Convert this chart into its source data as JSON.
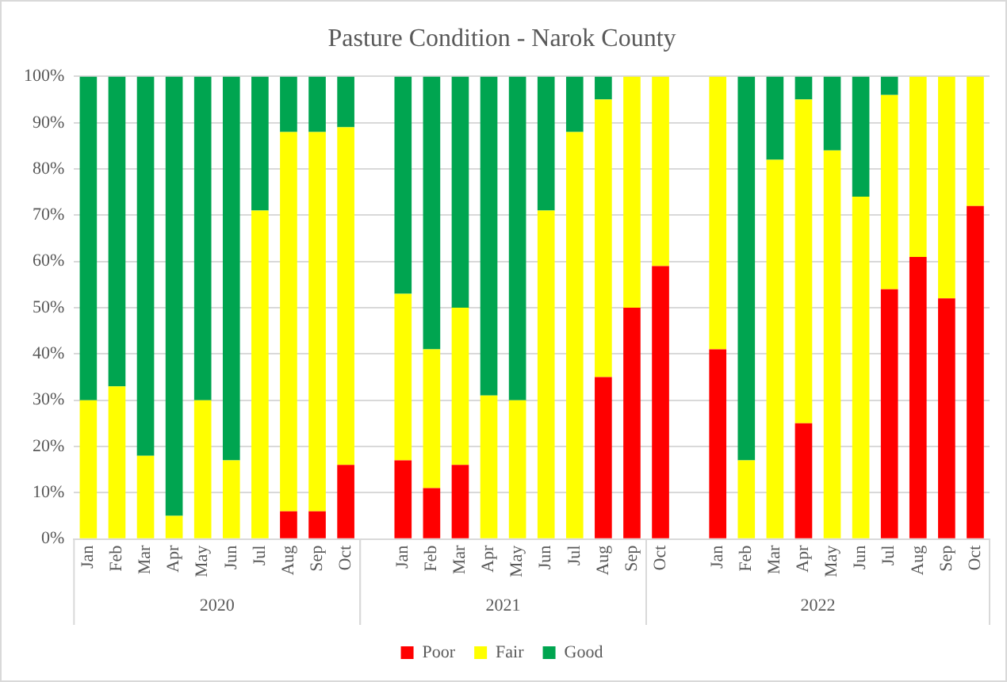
{
  "chart_data": {
    "type": "bar",
    "title": "Pasture Condition - Narok County",
    "stacked": true,
    "categories": [
      "Jan",
      "Feb",
      "Mar",
      "Apr",
      "May",
      "Jun",
      "Jul",
      "Aug",
      "Sep",
      "Oct",
      null,
      "Jan",
      "Feb",
      "Mar",
      "Apr",
      "May",
      "Jun",
      "Jul",
      "Aug",
      "Sep",
      "Oct",
      null,
      "Jan",
      "Feb",
      "Mar",
      "Apr",
      "May",
      "Jun",
      "Jul",
      "Aug",
      "Sep",
      "Oct"
    ],
    "series": [
      {
        "name": "Poor",
        "color": "#ff0000",
        "values": [
          0,
          0,
          0,
          0,
          0,
          0,
          0,
          6,
          6,
          16,
          null,
          17,
          11,
          16,
          0,
          0,
          0,
          0,
          35,
          50,
          59,
          null,
          41,
          0,
          0,
          25,
          0,
          0,
          54,
          61,
          52,
          72
        ]
      },
      {
        "name": "Fair",
        "color": "#ffff00",
        "values": [
          30,
          33,
          18,
          5,
          30,
          17,
          71,
          82,
          82,
          73,
          null,
          36,
          30,
          34,
          31,
          30,
          71,
          88,
          60,
          50,
          41,
          null,
          59,
          17,
          82,
          70,
          84,
          74,
          42,
          39,
          48,
          28
        ]
      },
      {
        "name": "Good",
        "color": "#00a550",
        "values": [
          70,
          67,
          82,
          95,
          70,
          83,
          29,
          12,
          12,
          11,
          null,
          47,
          59,
          50,
          69,
          70,
          29,
          12,
          5,
          0,
          0,
          null,
          0,
          83,
          18,
          5,
          16,
          26,
          4,
          0,
          0,
          0
        ]
      }
    ],
    "ylim": [
      0,
      100
    ],
    "yticks": [
      {
        "value": 0,
        "label": "0%"
      },
      {
        "value": 10,
        "label": "10%"
      },
      {
        "value": 20,
        "label": "20%"
      },
      {
        "value": 30,
        "label": "30%"
      },
      {
        "value": 40,
        "label": "40%"
      },
      {
        "value": 50,
        "label": "50%"
      },
      {
        "value": 60,
        "label": "60%"
      },
      {
        "value": 70,
        "label": "70%"
      },
      {
        "value": 80,
        "label": "80%"
      },
      {
        "value": 90,
        "label": "90%"
      },
      {
        "value": 100,
        "label": "100%"
      }
    ],
    "grid": "y",
    "legend": "bottom",
    "annotations": [
      "2020",
      "2021",
      "2022"
    ]
  }
}
